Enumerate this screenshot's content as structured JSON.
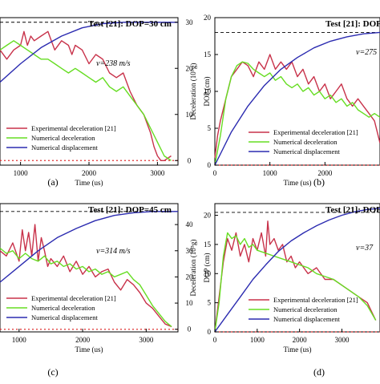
{
  "colors": {
    "experimental": "#c8324a",
    "numerical_decel": "#66dd22",
    "displacement": "#2b2bb0",
    "zero_line": "#e03030",
    "dop_line": "#000000"
  },
  "panels": [
    {
      "id": "a",
      "label": "(a)",
      "title": "Test [21]: DOP=30 cm",
      "velocity": "v=238 m/s",
      "xlabel": "Time (us)",
      "ylabel_right": "DOP (cm)",
      "ylabel_left": "",
      "x_ticks": [
        "1000",
        "2000",
        "3000"
      ],
      "y_ticks": [
        "0",
        "10",
        "20",
        "30"
      ],
      "legend": [
        "Experimental deceleration [21]",
        "Numerical deceleration",
        "Numerical displacement"
      ]
    },
    {
      "id": "b",
      "label": "(b)",
      "title": "Test [21]: DOP",
      "velocity": "v=275",
      "xlabel": "Time (us)",
      "ylabel_left": "Deceleration (10⁵g)",
      "ylabel_right": "",
      "x_ticks": [
        "0",
        "1000",
        "2000"
      ],
      "y_ticks": [
        "0",
        "5",
        "10",
        "15",
        "20"
      ],
      "legend": [
        "Experimental deceleration [21]",
        "Numerical deceleration",
        "Numerical displacement"
      ]
    },
    {
      "id": "c",
      "label": "(c)",
      "title": "Test [21]: DOP=45 cm",
      "velocity": "v=314 m/s",
      "xlabel": "Time (us)",
      "ylabel_right": "DOP (cm)",
      "ylabel_left": "",
      "x_ticks": [
        "1000",
        "2000",
        "3000"
      ],
      "y_ticks": [
        "0",
        "10",
        "20",
        "30",
        "40",
        "50"
      ],
      "legend": [
        "Experimental deceleration [21]",
        "Numerical deceleration",
        "Numerical displacement"
      ]
    },
    {
      "id": "d",
      "label": "(d)",
      "title": "Test [21]: DOF",
      "velocity": "v=37",
      "xlabel": "Time (us)",
      "ylabel_left": "Deceleration (10⁵g)",
      "ylabel_right": "",
      "x_ticks": [
        "0",
        "1000",
        "2000",
        "3000"
      ],
      "y_ticks": [
        "0",
        "5",
        "10",
        "15",
        "20"
      ],
      "legend": [
        "Experimental deceleration [21]",
        "Numerical deceleration",
        "Numerical displacement"
      ]
    }
  ],
  "chart_data": [
    {
      "type": "line",
      "panel": "a",
      "xlim": [
        700,
        3300
      ],
      "ylim": [
        -1,
        31
      ],
      "dop_reference": 30,
      "series": [
        {
          "name": "Experimental deceleration [21]",
          "x": [
            700,
            800,
            900,
            1000,
            1050,
            1100,
            1150,
            1200,
            1300,
            1400,
            1450,
            1500,
            1600,
            1700,
            1750,
            1800,
            1900,
            2000,
            2100,
            2200,
            2300,
            2400,
            2500,
            2600,
            2700,
            2800,
            2900,
            2950,
            3000,
            3050,
            3100,
            3200
          ],
          "y": [
            24,
            22,
            24,
            25,
            28,
            25,
            27,
            26,
            27,
            28,
            26,
            24,
            26,
            25,
            23,
            25,
            24,
            21,
            23,
            22,
            19,
            18,
            19,
            15,
            12,
            10,
            6,
            3,
            1,
            0,
            0,
            1
          ]
        },
        {
          "name": "Numerical deceleration",
          "x": [
            700,
            800,
            900,
            1000,
            1100,
            1200,
            1300,
            1400,
            1500,
            1600,
            1700,
            1800,
            1900,
            2000,
            2100,
            2200,
            2300,
            2400,
            2500,
            2600,
            2700,
            2800,
            2900,
            3000,
            3100,
            3200
          ],
          "y": [
            24,
            25,
            26,
            25,
            24,
            23,
            22,
            22,
            21,
            20,
            19,
            20,
            19,
            18,
            17,
            18,
            16,
            15,
            16,
            14,
            12,
            10,
            7,
            4,
            1,
            0
          ]
        },
        {
          "name": "Numerical displacement",
          "x": [
            700,
            1000,
            1300,
            1600,
            1900,
            2200,
            2500,
            2800,
            3100,
            3300
          ],
          "y": [
            17,
            21,
            24.5,
            27,
            28.8,
            29.7,
            30,
            30,
            30,
            30
          ]
        }
      ]
    },
    {
      "type": "line",
      "panel": "b",
      "xlim": [
        0,
        3000
      ],
      "ylim": [
        0,
        20
      ],
      "dop_reference": 18,
      "series": [
        {
          "name": "Experimental deceleration [21]",
          "x": [
            0,
            50,
            100,
            200,
            300,
            400,
            500,
            600,
            700,
            800,
            900,
            1000,
            1100,
            1200,
            1300,
            1400,
            1500,
            1600,
            1700,
            1800,
            1900,
            2000,
            2100,
            2200,
            2300,
            2400,
            2500,
            2600,
            2700,
            2800,
            2900,
            3000
          ],
          "y": [
            1,
            4,
            6,
            9,
            12,
            13,
            14,
            13.5,
            12,
            14,
            13,
            15,
            13,
            14,
            13,
            14,
            12,
            13,
            11,
            12,
            10,
            11,
            9,
            10,
            11,
            9,
            8,
            9,
            8,
            7,
            6,
            3
          ]
        },
        {
          "name": "Numerical deceleration",
          "x": [
            0,
            100,
            200,
            300,
            400,
            500,
            600,
            700,
            800,
            900,
            1000,
            1100,
            1200,
            1300,
            1400,
            1500,
            1600,
            1700,
            1800,
            1900,
            2000,
            2100,
            2200,
            2300,
            2400,
            2500,
            2600,
            2700,
            2800,
            2900,
            3000
          ],
          "y": [
            0,
            4,
            9,
            12,
            13.5,
            14,
            13.8,
            13,
            12.5,
            12,
            12.5,
            11.5,
            12,
            11,
            10.5,
            11,
            10,
            10.5,
            9.5,
            10,
            9,
            9.5,
            8.5,
            9,
            8,
            8.5,
            7.5,
            7,
            6.5,
            7,
            6.5
          ]
        },
        {
          "name": "Numerical displacement",
          "x": [
            0,
            300,
            600,
            900,
            1200,
            1500,
            1800,
            2100,
            2400,
            2700,
            3000
          ],
          "y": [
            0,
            4.5,
            8,
            10.8,
            13,
            14.6,
            15.9,
            16.8,
            17.4,
            17.8,
            18
          ]
        }
      ]
    },
    {
      "type": "line",
      "panel": "c",
      "xlim": [
        700,
        3500
      ],
      "ylim": [
        -1,
        48
      ],
      "dop_reference": 45,
      "series": [
        {
          "name": "Experimental deceleration [21]",
          "x": [
            700,
            800,
            900,
            1000,
            1050,
            1100,
            1150,
            1200,
            1250,
            1300,
            1350,
            1400,
            1450,
            1500,
            1600,
            1700,
            1800,
            1900,
            2000,
            2100,
            2200,
            2300,
            2400,
            2500,
            2600,
            2700,
            2800,
            2900,
            3000,
            3100,
            3200,
            3300,
            3400
          ],
          "y": [
            30,
            28,
            33,
            26,
            38,
            30,
            37,
            28,
            40,
            26,
            35,
            30,
            24,
            27,
            24,
            28,
            22,
            26,
            21,
            24,
            20,
            22,
            23,
            18,
            15,
            19,
            17,
            14,
            10,
            8,
            5,
            2,
            1
          ]
        },
        {
          "name": "Numerical deceleration",
          "x": [
            700,
            800,
            900,
            1000,
            1100,
            1200,
            1300,
            1400,
            1500,
            1600,
            1700,
            1800,
            1900,
            2000,
            2100,
            2200,
            2300,
            2400,
            2500,
            2600,
            2700,
            2800,
            2900,
            3000,
            3100,
            3200,
            3300,
            3400
          ],
          "y": [
            31,
            29,
            30,
            27,
            29,
            27,
            26,
            28,
            25,
            26,
            24,
            25,
            23,
            24,
            22,
            23,
            21,
            22,
            20,
            21,
            22,
            19,
            17,
            13,
            9,
            6,
            3,
            1
          ]
        },
        {
          "name": "Numerical displacement",
          "x": [
            700,
            1000,
            1300,
            1600,
            1900,
            2200,
            2500,
            2800,
            3100,
            3400,
            3500
          ],
          "y": [
            18,
            24,
            30,
            35,
            38.5,
            41.5,
            43.5,
            44.5,
            45,
            45,
            45
          ]
        }
      ]
    },
    {
      "type": "line",
      "panel": "d",
      "xlim": [
        0,
        3900
      ],
      "ylim": [
        0,
        22
      ],
      "dop_reference": 20.5,
      "series": [
        {
          "name": "Experimental deceleration [21]",
          "x": [
            0,
            100,
            200,
            300,
            400,
            500,
            600,
            700,
            800,
            900,
            1000,
            1100,
            1200,
            1250,
            1300,
            1400,
            1500,
            1600,
            1700,
            1800,
            1900,
            2000,
            2200,
            2400,
            2600,
            2800,
            3000,
            3200,
            3400,
            3600,
            3800
          ],
          "y": [
            0,
            6,
            12,
            16,
            14,
            17,
            13,
            15,
            12,
            16,
            14,
            17,
            13,
            19,
            15,
            16,
            14,
            15,
            12,
            13,
            11,
            12,
            10,
            11,
            9,
            9,
            8,
            7,
            6,
            5,
            2
          ]
        },
        {
          "name": "Numerical deceleration",
          "x": [
            0,
            100,
            200,
            300,
            400,
            500,
            600,
            700,
            800,
            900,
            1000,
            1200,
            1400,
            1600,
            1800,
            2000,
            2200,
            2400,
            2600,
            2800,
            3000,
            3200,
            3400,
            3600,
            3800
          ],
          "y": [
            0,
            5,
            13,
            17,
            16,
            16.5,
            15,
            16,
            14.5,
            15,
            14,
            13.5,
            13,
            12.5,
            12,
            11.5,
            11,
            10,
            9.5,
            9,
            8,
            7,
            6,
            4.5,
            2
          ]
        },
        {
          "name": "Numerical displacement",
          "x": [
            0,
            300,
            600,
            900,
            1200,
            1500,
            1800,
            2100,
            2400,
            2700,
            3000,
            3300,
            3600,
            3900
          ],
          "y": [
            0,
            3,
            6,
            9,
            11.5,
            13.8,
            15.6,
            17,
            18.2,
            19.2,
            20,
            20.6,
            21,
            21.2
          ]
        }
      ]
    }
  ]
}
